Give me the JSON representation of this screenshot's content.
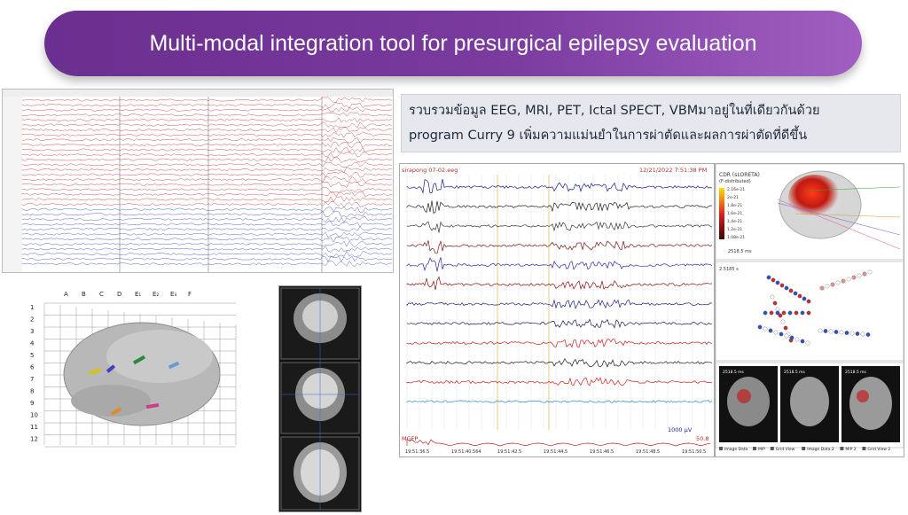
{
  "title": "Multi-modal integration tool for presurgical epilepsy evaluation",
  "description": {
    "line1": "รวบรวมข้อมูล EEG, MRI, PET, Ictal SPECT, VBMมาอยู่ในที่เดียวกันด้วย",
    "line2": "program Curry 9 เพิ่มความแม่นยำในการผ่าตัดและผลการผ่าตัดที่ดีขึ้น"
  },
  "curry": {
    "file": "sirapong 07-02.eeg",
    "datetime": "12/21/2022 7:51:38 PM",
    "scale": "1000 µV",
    "mgfp": "MGFP",
    "value": "50.8",
    "time_current": "19:51:40.564",
    "times": [
      "19:51:36.5",
      "19:51:40.564",
      "19:51:42.5",
      "19:51:44.5",
      "19:51:46.5",
      "19:51:48.5",
      "19:51:50.5"
    ]
  },
  "cdr": {
    "title": "CDR (sLORETA)",
    "subtitle": "(F-distributed)",
    "scale": [
      "2.16e-21",
      "2e-21",
      "1.8e-21",
      "1.6e-21",
      "1.4e-21",
      "1.2e-21",
      "1.08e-21"
    ],
    "time": "2518.5 ms"
  },
  "dipole_time": "2.5185 s",
  "mri_times": [
    "2518.5 ms",
    "2518.5 ms",
    "2518.5 ms"
  ],
  "bottom_toolbar": [
    "Image Data",
    "MIP",
    "Grid View",
    "Image Data 2",
    "MIP 2",
    "Grid View 2"
  ],
  "grid_cols": [
    "A",
    "B",
    "C",
    "D",
    "E₁",
    "E₂",
    "E₃",
    "F"
  ],
  "grid_rows": [
    "1",
    "2",
    "3",
    "4",
    "5",
    "6",
    "7",
    "8",
    "9",
    "10",
    "11",
    "12"
  ],
  "colors": {
    "accent": "#6a2f8f",
    "eeg_red": "#c0282d",
    "eeg_blue": "#2a3fb5"
  }
}
